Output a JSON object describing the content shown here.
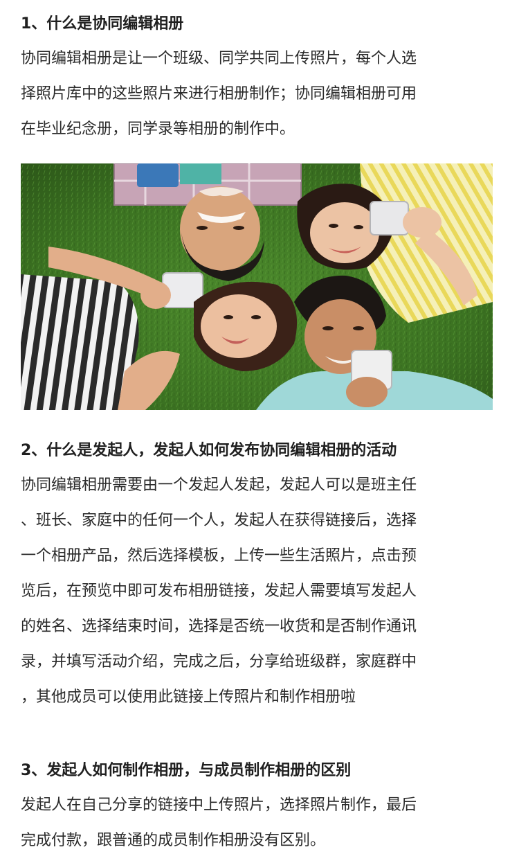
{
  "section1": {
    "heading": "1、什么是协同编辑相册",
    "lines": [
      "协同编辑相册是让一个班级、同学共同上传照片，每个人选",
      "择照片库中的这些照片来进行相册制作；协同编辑相册可用",
      "在毕业纪念册，同学录等相册的制作中。"
    ]
  },
  "photo": {
    "subject": "five-students-lying-on-grass-with-phones"
  },
  "section2": {
    "heading": "2、什么是发起人，发起人如何发布协同编辑相册的活动",
    "lines": [
      "协同编辑相册需要由一个发起人发起，发起人可以是班主任",
      "、班长、家庭中的任何一个人，发起人在获得链接后，选择",
      "一个相册产品，然后选择模板，上传一些生活照片，点击预",
      "览后，在预览中即可发布相册链接，发起人需要填写发起人",
      "的姓名、选择结束时间，选择是否统一收货和是否制作通讯",
      "录，并填写活动介绍，完成之后，分享给班级群，家庭群中",
      "，其他成员可以使用此链接上传照片和制作相册啦"
    ]
  },
  "section3": {
    "heading": "3、发起人如何制作相册，与成员制作相册的区别",
    "lines": [
      "发起人在自己分享的链接中上传照片，选择照片制作，最后",
      "完成付款，跟普通的成员制作相册没有区别。"
    ]
  }
}
